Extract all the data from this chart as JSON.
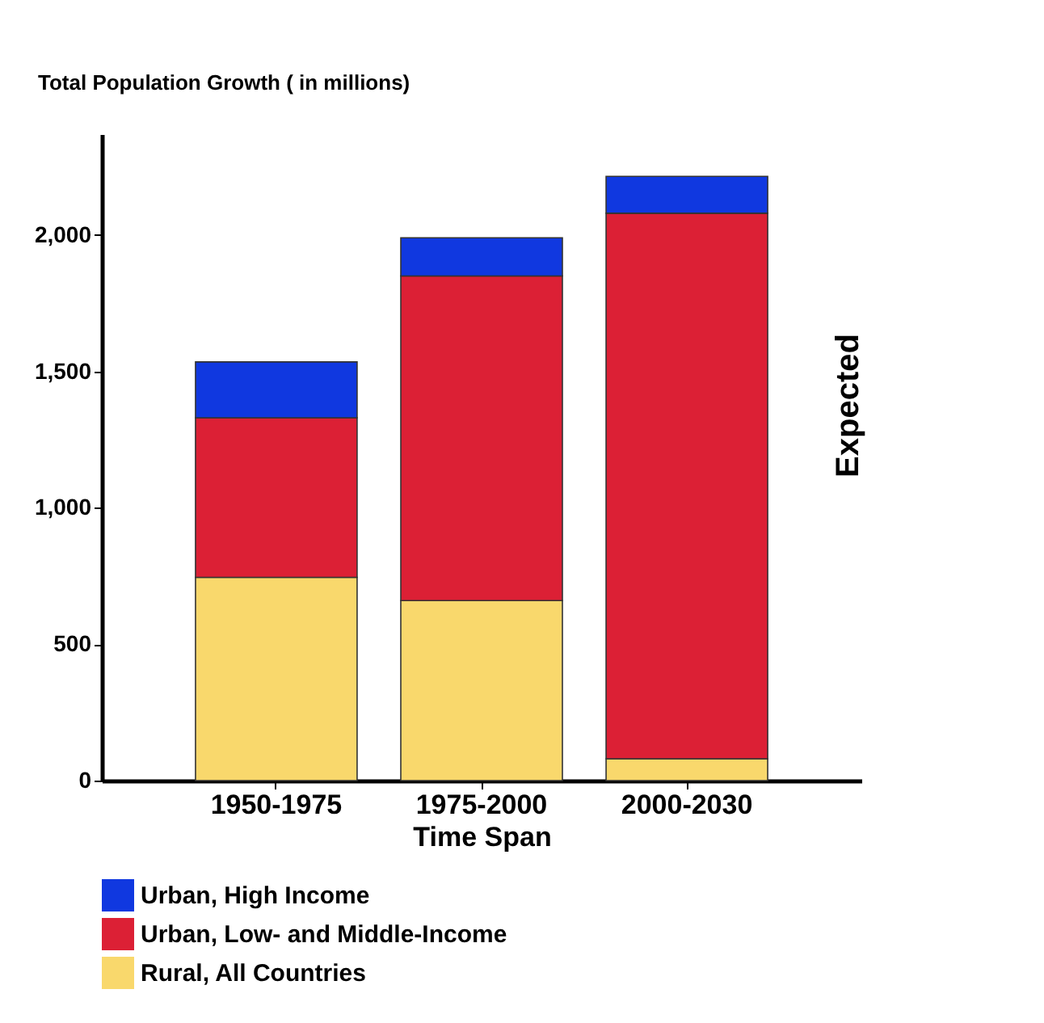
{
  "chart_data": {
    "type": "bar",
    "stacked": true,
    "ylabel": "Total Population Growth ( in millions)",
    "xlabel": "Time Span",
    "categories": [
      "1950-1975",
      "1975-2000",
      "2000-2030"
    ],
    "series": [
      {
        "name": "Rural, All Countries",
        "color": "#f9d86c",
        "values": [
          745,
          660,
          80
        ]
      },
      {
        "name": "Urban, Low- and Middle-Income",
        "color": "#dc2035",
        "values": [
          585,
          1190,
          2000
        ]
      },
      {
        "name": "Urban, High Income",
        "color": "#1038e0",
        "values": [
          205,
          140,
          135
        ]
      }
    ],
    "ylim": [
      0,
      2370
    ],
    "yticks": [
      0,
      {
        "value": 500,
        "label": "500"
      },
      {
        "value": 1000,
        "label": "1,000"
      },
      {
        "value": 1500,
        "label": "1,500"
      },
      {
        "value": 2000,
        "label": "2,000"
      }
    ],
    "grid": false,
    "legend": "bottom",
    "annotations": [
      "Expected"
    ]
  }
}
